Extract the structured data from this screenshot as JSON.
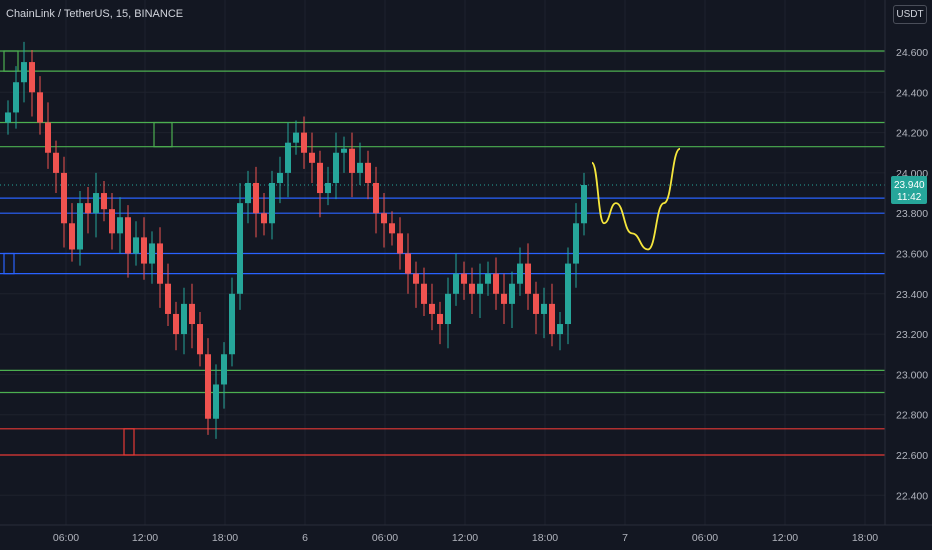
{
  "header": {
    "symbol_title": "ChainLink / TetherUS, 15, BINANCE",
    "currency": "USDT"
  },
  "price_tag": {
    "price": "23.940",
    "countdown": "11:42",
    "color": "#26a69a"
  },
  "colors": {
    "background": "#131722",
    "up": "#26a69a",
    "down": "#ef5350",
    "support_green": "#4caf50",
    "level_blue": "#2962ff",
    "level_red": "#e53935",
    "projection": "#f5e63c"
  },
  "chart_data": {
    "type": "candlestick",
    "title": "ChainLink / TetherUS, 15, BINANCE",
    "ylim": [
      22.3,
      24.75
    ],
    "y_ticks": [
      "24.600",
      "24.400",
      "24.200",
      "24.000",
      "23.800",
      "23.600",
      "23.400",
      "23.200",
      "23.000",
      "22.800",
      "22.600",
      "22.400"
    ],
    "x_ticks": [
      "06:00",
      "12:00",
      "18:00",
      "6",
      "06:00",
      "12:00",
      "18:00",
      "7",
      "06:00",
      "12:00",
      "18:00"
    ],
    "current_price": 23.94,
    "horizontal_levels": [
      {
        "price": 24.605,
        "color": "green"
      },
      {
        "price": 24.505,
        "color": "green"
      },
      {
        "price": 24.25,
        "color": "green"
      },
      {
        "price": 24.13,
        "color": "green"
      },
      {
        "price": 23.875,
        "color": "blue"
      },
      {
        "price": 23.8,
        "color": "blue"
      },
      {
        "price": 23.6,
        "color": "blue"
      },
      {
        "price": 23.5,
        "color": "blue"
      },
      {
        "price": 23.02,
        "color": "green"
      },
      {
        "price": 22.91,
        "color": "green"
      },
      {
        "price": 22.73,
        "color": "red"
      },
      {
        "price": 22.6,
        "color": "red"
      }
    ],
    "zones": [
      {
        "x_from": 0,
        "x_to": 0.6,
        "price_top": 24.605,
        "price_bottom": 24.505,
        "color": "green"
      },
      {
        "x_from": 7.5,
        "x_to": 8.3,
        "price_top": 24.25,
        "price_bottom": 24.13,
        "color": "green"
      },
      {
        "x_from": 0,
        "x_to": 0.4,
        "price_top": 23.6,
        "price_bottom": 23.5,
        "color": "blue"
      },
      {
        "x_from": 6,
        "x_to": 6.4,
        "price_top": 22.73,
        "price_bottom": 22.6,
        "color": "red"
      }
    ],
    "candles_close": [
      24.3,
      24.45,
      24.55,
      24.4,
      24.25,
      24.1,
      24.0,
      23.75,
      23.62,
      23.85,
      23.8,
      23.9,
      23.82,
      23.7,
      23.78,
      23.6,
      23.68,
      23.55,
      23.65,
      23.45,
      23.3,
      23.2,
      23.35,
      23.25,
      23.1,
      22.78,
      22.95,
      23.1,
      23.4,
      23.85,
      23.95,
      23.8,
      23.75,
      23.95,
      24.0,
      24.15,
      24.2,
      24.1,
      24.05,
      23.9,
      23.95,
      24.1,
      24.12,
      24.0,
      24.05,
      23.95,
      23.8,
      23.75,
      23.7,
      23.6,
      23.5,
      23.45,
      23.35,
      23.3,
      23.25,
      23.4,
      23.5,
      23.45,
      23.4,
      23.45,
      23.5,
      23.4,
      23.35,
      23.45,
      23.55,
      23.4,
      23.3,
      23.35,
      23.2,
      23.25,
      23.55,
      23.75,
      23.94
    ],
    "projection": [
      [
        73,
        24.05
      ],
      [
        74.5,
        23.75
      ],
      [
        76,
        23.85
      ],
      [
        78,
        23.7
      ],
      [
        80,
        23.62
      ],
      [
        82,
        23.85
      ],
      [
        84,
        24.12
      ]
    ]
  }
}
